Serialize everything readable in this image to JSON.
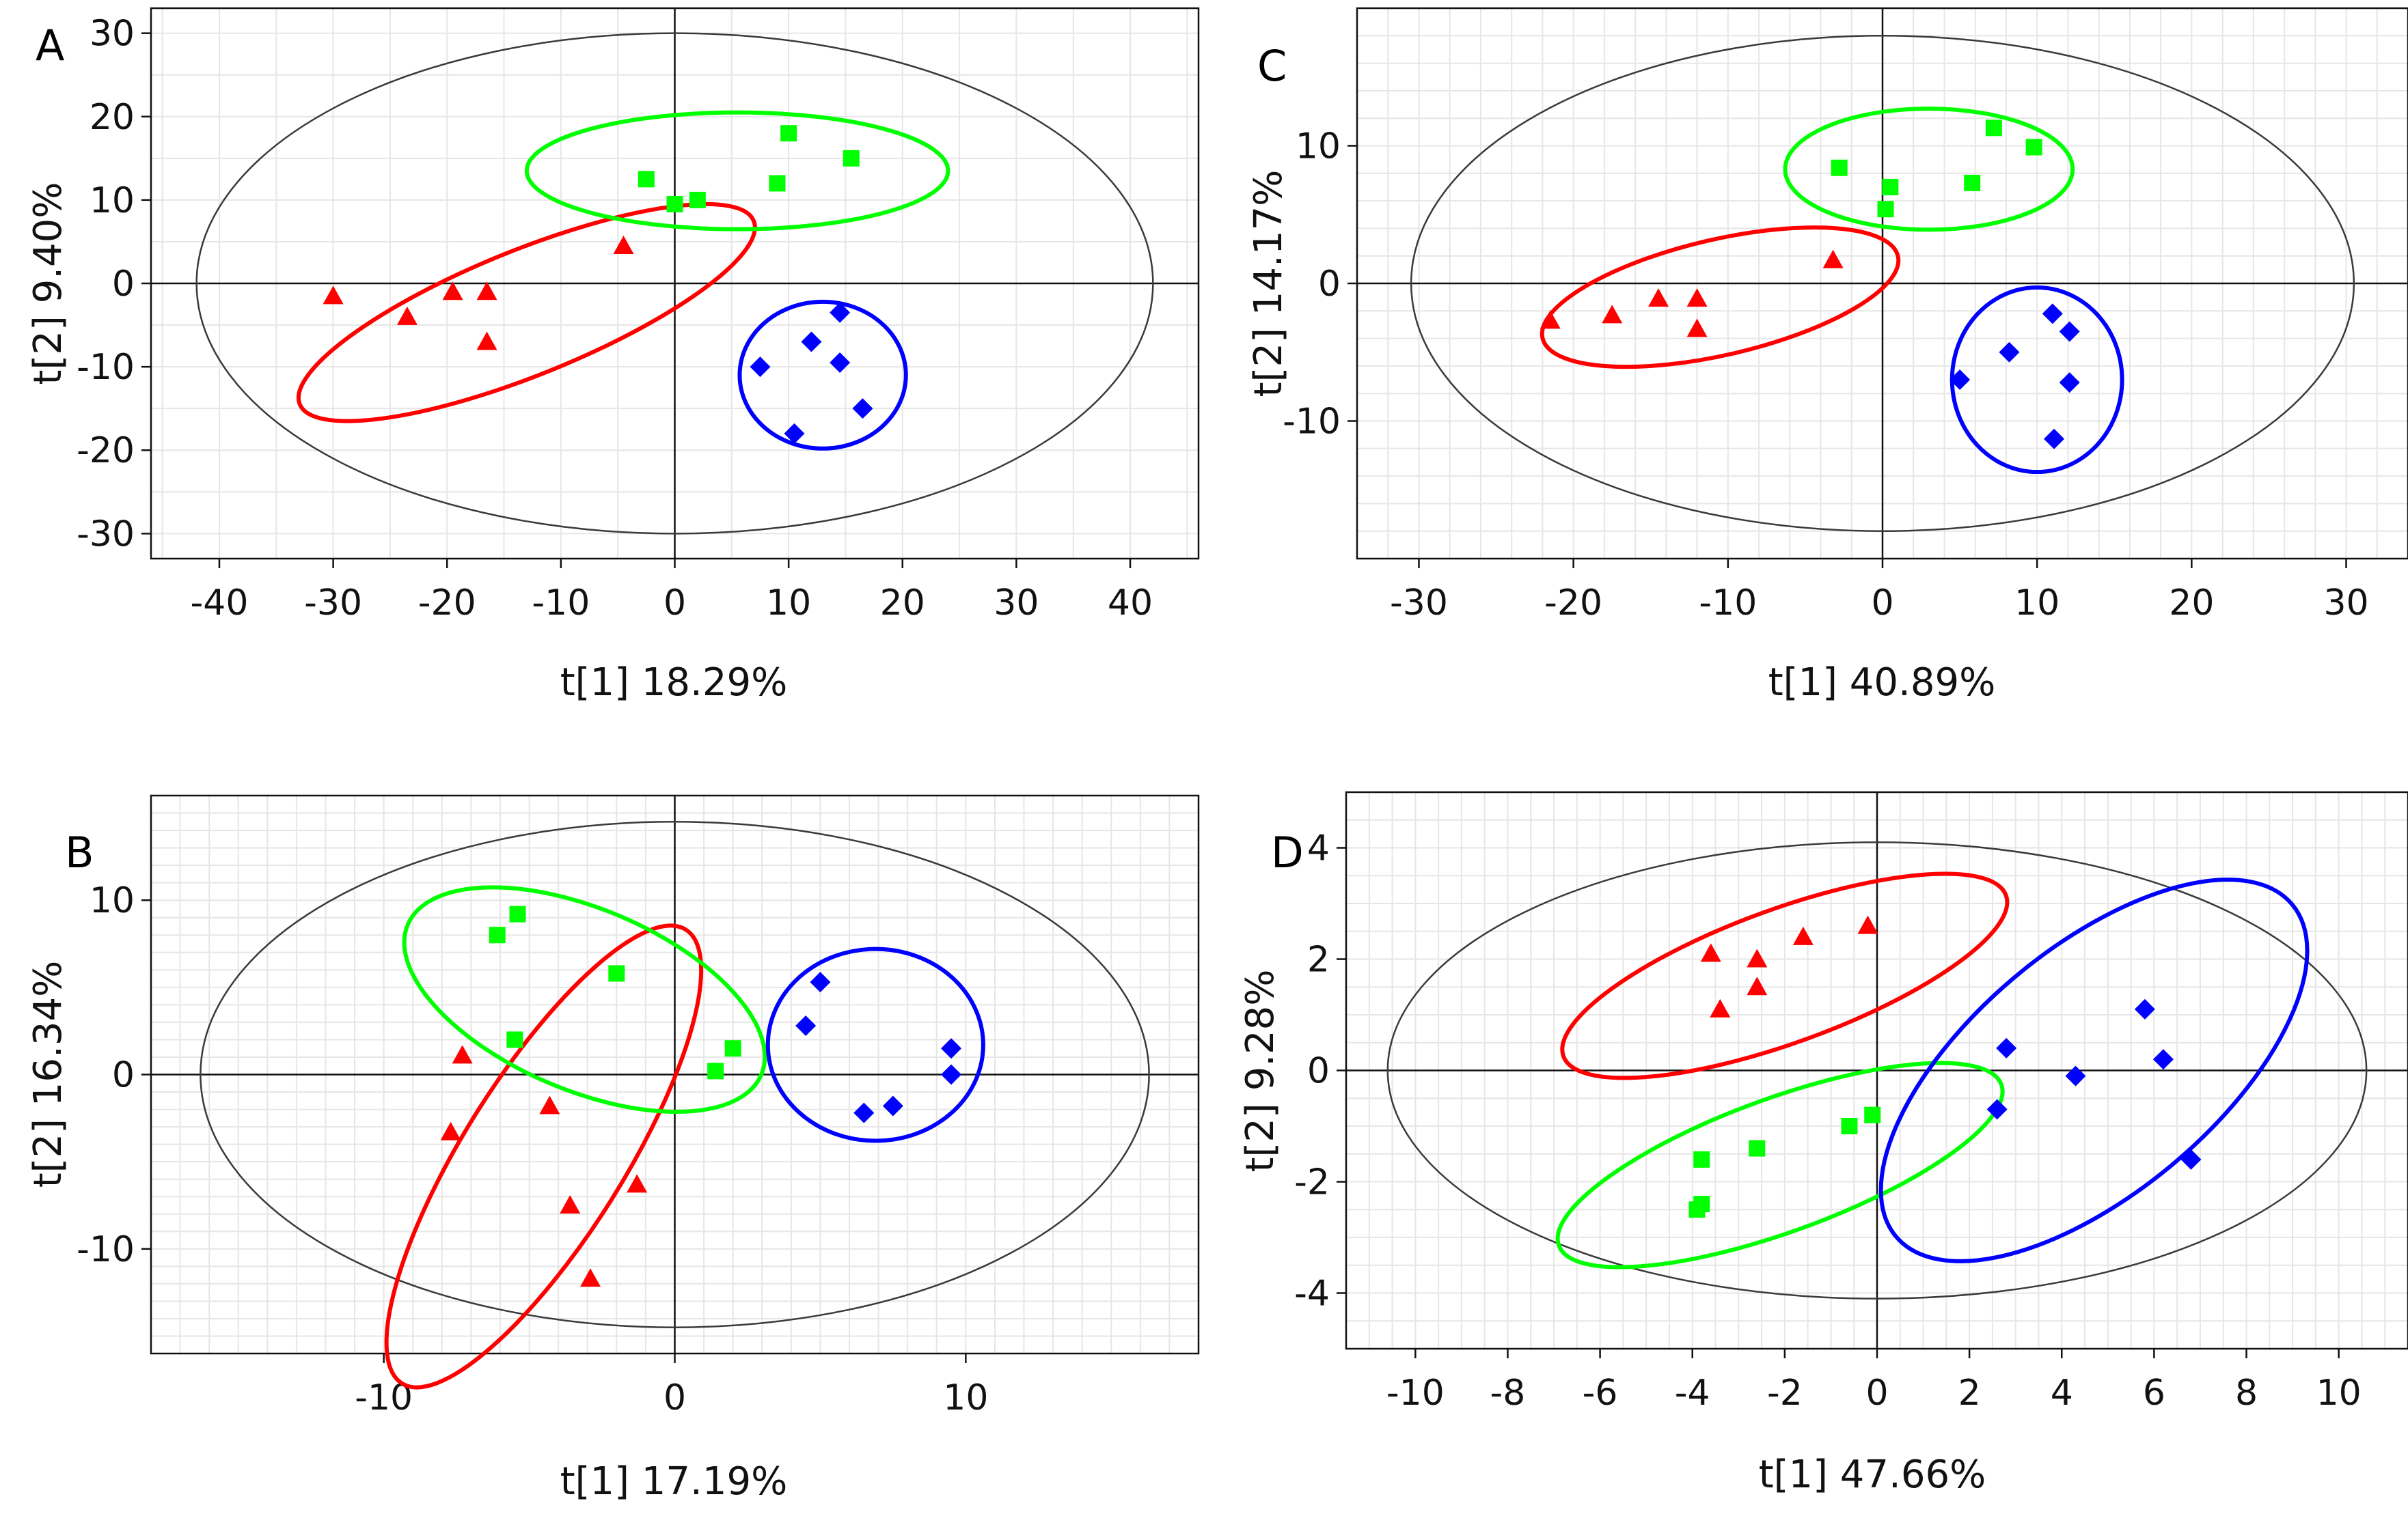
{
  "colors": {
    "red": "#ff0000",
    "green": "#00ff00",
    "blue": "#0000ff"
  },
  "chart_data": [
    {
      "id": "A",
      "type": "scatter",
      "panel_label": "A",
      "xlabel": "t[1] 18.29%",
      "ylabel": "t[2] 9.40%",
      "xlim": [
        -46,
        46
      ],
      "ylim": [
        -33,
        33
      ],
      "xticks": [
        -40,
        -30,
        -20,
        -10,
        0,
        10,
        20,
        30,
        40
      ],
      "yticks": [
        -30,
        -20,
        -10,
        0,
        10,
        20,
        30
      ],
      "xminor": 5,
      "yminor": 5,
      "t2_ellipse": {
        "rx": 42,
        "ry": 30
      },
      "series": [
        {
          "name": "red",
          "color": "#ff0000",
          "marker": "triangle",
          "points": [
            [
              -30,
              -1.5
            ],
            [
              -23.5,
              -4
            ],
            [
              -19.5,
              -1
            ],
            [
              -16.5,
              -1
            ],
            [
              -16.5,
              -7
            ],
            [
              -4.5,
              4.5
            ]
          ]
        },
        {
          "name": "green",
          "color": "#00ff00",
          "marker": "square",
          "points": [
            [
              -2.5,
              12.5
            ],
            [
              0,
              9.5
            ],
            [
              2,
              10
            ],
            [
              9,
              12
            ],
            [
              10,
              18
            ],
            [
              15.5,
              15
            ]
          ]
        },
        {
          "name": "blue",
          "color": "#0000ff",
          "marker": "diamond",
          "points": [
            [
              7.5,
              -10
            ],
            [
              12,
              -7
            ],
            [
              14.5,
              -3.5
            ],
            [
              14.5,
              -9.5
            ],
            [
              16.5,
              -15
            ],
            [
              10.5,
              -18
            ]
          ]
        }
      ],
      "groups": [
        {
          "color": "#ff0000",
          "cx": -13,
          "cy": -3.5,
          "rx": 21.5,
          "ry": 7.5,
          "angle": 22
        },
        {
          "color": "#00ff00",
          "cx": 5.5,
          "cy": 13.5,
          "rx": 18.5,
          "ry": 7,
          "angle": 0
        },
        {
          "color": "#0000ff",
          "cx": 13,
          "cy": -11,
          "rx": 7.3,
          "ry": 8.8,
          "angle": 0
        }
      ]
    },
    {
      "id": "B",
      "type": "scatter",
      "panel_label": "B",
      "xlabel": "t[1] 17.19%",
      "ylabel": "t[2] 16.34%",
      "xlim": [
        -18,
        18
      ],
      "ylim": [
        -16,
        16
      ],
      "xticks": [
        -10,
        0,
        10
      ],
      "yticks": [
        -10,
        0,
        10
      ],
      "xminor": 1,
      "yminor": 1,
      "t2_ellipse": {
        "rx": 16.3,
        "ry": 14.5
      },
      "series": [
        {
          "name": "red",
          "color": "#ff0000",
          "marker": "triangle",
          "points": [
            [
              -7.3,
              1.1
            ],
            [
              -7.7,
              -3.3
            ],
            [
              -4.3,
              -1.8
            ],
            [
              -3.6,
              -7.5
            ],
            [
              -1.3,
              -6.3
            ],
            [
              -2.9,
              -11.7
            ]
          ]
        },
        {
          "name": "green",
          "color": "#00ff00",
          "marker": "square",
          "points": [
            [
              -6.1,
              8
            ],
            [
              -5.4,
              9.2
            ],
            [
              -2,
              5.8
            ],
            [
              -5.5,
              2
            ],
            [
              1.4,
              0.2
            ],
            [
              2,
              1.5
            ]
          ]
        },
        {
          "name": "blue",
          "color": "#0000ff",
          "marker": "diamond",
          "points": [
            [
              5,
              5.3
            ],
            [
              4.5,
              2.8
            ],
            [
              9.5,
              1.5
            ],
            [
              9.5,
              0
            ],
            [
              7.5,
              -1.8
            ],
            [
              6.5,
              -2.2
            ]
          ]
        }
      ],
      "groups": [
        {
          "color": "#ff0000",
          "cx": -4.5,
          "cy": -4.7,
          "rx": 9.2,
          "ry": 4.6,
          "angle": 58
        },
        {
          "color": "#00ff00",
          "cx": -3.1,
          "cy": 4.3,
          "rx": 6.6,
          "ry": 5.2,
          "angle": -23
        },
        {
          "color": "#0000ff",
          "cx": 6.9,
          "cy": 1.7,
          "rx": 3.7,
          "ry": 5.5,
          "angle": 0
        }
      ]
    },
    {
      "id": "C",
      "type": "scatter",
      "panel_label": "C",
      "xlabel": "t[1] 40.89%",
      "ylabel": "t[2] 14.17%",
      "xlim": [
        -34,
        34
      ],
      "ylim": [
        -20,
        20
      ],
      "xticks": [
        -30,
        -20,
        -10,
        0,
        10,
        20,
        30
      ],
      "yticks": [
        -10,
        0,
        10
      ],
      "xminor": 2,
      "yminor": 2,
      "t2_ellipse": {
        "rx": 30.5,
        "ry": 18
      },
      "series": [
        {
          "name": "red",
          "color": "#ff0000",
          "marker": "triangle",
          "points": [
            [
              -21.5,
              -2.7
            ],
            [
              -17.5,
              -2.3
            ],
            [
              -14.5,
              -1.1
            ],
            [
              -12,
              -1.1
            ],
            [
              -12,
              -3.3
            ],
            [
              -3.2,
              1.7
            ]
          ]
        },
        {
          "name": "green",
          "color": "#00ff00",
          "marker": "square",
          "points": [
            [
              -2.8,
              8.4
            ],
            [
              0.5,
              7
            ],
            [
              0.2,
              5.4
            ],
            [
              5.8,
              7.3
            ],
            [
              7.2,
              11.3
            ],
            [
              9.8,
              9.9
            ]
          ]
        },
        {
          "name": "blue",
          "color": "#0000ff",
          "marker": "diamond",
          "points": [
            [
              5,
              -7
            ],
            [
              8.2,
              -5
            ],
            [
              11,
              -2.2
            ],
            [
              12.1,
              -3.5
            ],
            [
              12.1,
              -7.2
            ],
            [
              11.1,
              -11.3
            ]
          ]
        }
      ],
      "groups": [
        {
          "color": "#ff0000",
          "cx": -10.5,
          "cy": -1,
          "rx": 11.8,
          "ry": 4.2,
          "angle": 13
        },
        {
          "color": "#00ff00",
          "cx": 3,
          "cy": 8.3,
          "rx": 9.3,
          "ry": 4.4,
          "angle": 0
        },
        {
          "color": "#0000ff",
          "cx": 10,
          "cy": -7,
          "rx": 5.5,
          "ry": 6.7,
          "angle": 0
        }
      ]
    },
    {
      "id": "D",
      "type": "scatter",
      "panel_label": "D",
      "xlabel": "t[1] 47.66%",
      "ylabel": "t[2] 9.28%",
      "xlim": [
        -11.5,
        11.5
      ],
      "ylim": [
        -5,
        5
      ],
      "xticks": [
        -10,
        -8,
        -6,
        -4,
        -2,
        0,
        2,
        4,
        6,
        8,
        10
      ],
      "yticks": [
        -4,
        -2,
        0,
        2,
        4
      ],
      "xminor": 0.5,
      "yminor": 0.5,
      "t2_ellipse": {
        "rx": 10.6,
        "ry": 4.1
      },
      "series": [
        {
          "name": "red",
          "color": "#ff0000",
          "marker": "triangle",
          "points": [
            [
              -3.6,
              2.1
            ],
            [
              -2.6,
              2
            ],
            [
              -2.6,
              1.5
            ],
            [
              -1.6,
              2.4
            ],
            [
              -0.2,
              2.6
            ],
            [
              -3.4,
              1.1
            ]
          ]
        },
        {
          "name": "green",
          "color": "#00ff00",
          "marker": "square",
          "points": [
            [
              -3.8,
              -1.6
            ],
            [
              -2.6,
              -1.4
            ],
            [
              -0.6,
              -1
            ],
            [
              -0.1,
              -0.8
            ],
            [
              -3.8,
              -2.4
            ],
            [
              -3.9,
              -2.5
            ]
          ]
        },
        {
          "name": "blue",
          "color": "#0000ff",
          "marker": "diamond",
          "points": [
            [
              2.6,
              -0.7
            ],
            [
              2.8,
              0.4
            ],
            [
              4.3,
              -0.1
            ],
            [
              5.8,
              1.1
            ],
            [
              6.2,
              0.2
            ],
            [
              6.8,
              -1.6
            ]
          ]
        }
      ],
      "groups": [
        {
          "color": "#ff0000",
          "cx": -2,
          "cy": 1.7,
          "rx": 5.1,
          "ry": 1.2,
          "angle": 20
        },
        {
          "color": "#00ff00",
          "cx": -2.1,
          "cy": -1.7,
          "rx": 5.1,
          "ry": 1.2,
          "angle": 20
        },
        {
          "color": "#0000ff",
          "cx": 4.7,
          "cy": 0,
          "rx": 5.6,
          "ry": 2.2,
          "angle": 40
        }
      ]
    }
  ]
}
